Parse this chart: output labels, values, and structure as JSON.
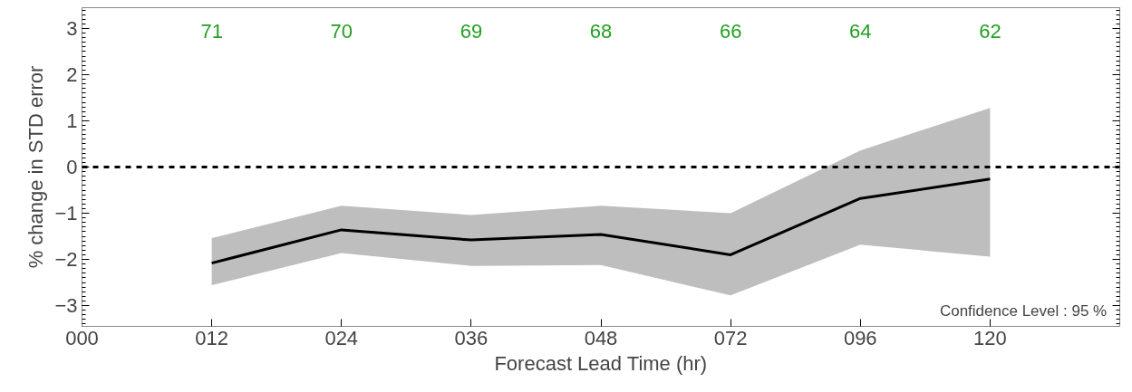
{
  "chart_data": {
    "type": "line",
    "xlabel": "Forecast Lead Time (hr)",
    "ylabel": "% change in STD error",
    "categories": [
      "000",
      "012",
      "024",
      "036",
      "048",
      "072",
      "096",
      "120"
    ],
    "series": [
      {
        "color": "#000000",
        "values": [
          null,
          -2.08,
          -1.36,
          -1.58,
          -1.46,
          -1.9,
          -0.68,
          -0.26
        ],
        "lower": [
          null,
          -2.56,
          -1.86,
          -2.14,
          -2.12,
          -2.78,
          -1.68,
          -1.94
        ],
        "upper": [
          null,
          -1.54,
          -0.84,
          -1.04,
          -0.84,
          -1.0,
          0.36,
          1.28
        ]
      }
    ],
    "ylim": [
      -3.45,
      3.45
    ],
    "yticks": [
      -3,
      -2,
      -1,
      0,
      1,
      2,
      3
    ],
    "grid": false,
    "marker": "none",
    "line_style": "solid",
    "ref_lines": [
      {
        "axis": "y",
        "value": 0,
        "color": "#000000",
        "line_style": "dashed"
      }
    ],
    "annotations": [
      "71",
      "70",
      "69",
      "68",
      "66",
      "64",
      "62",
      "Confidence Level : 95 %"
    ]
  }
}
